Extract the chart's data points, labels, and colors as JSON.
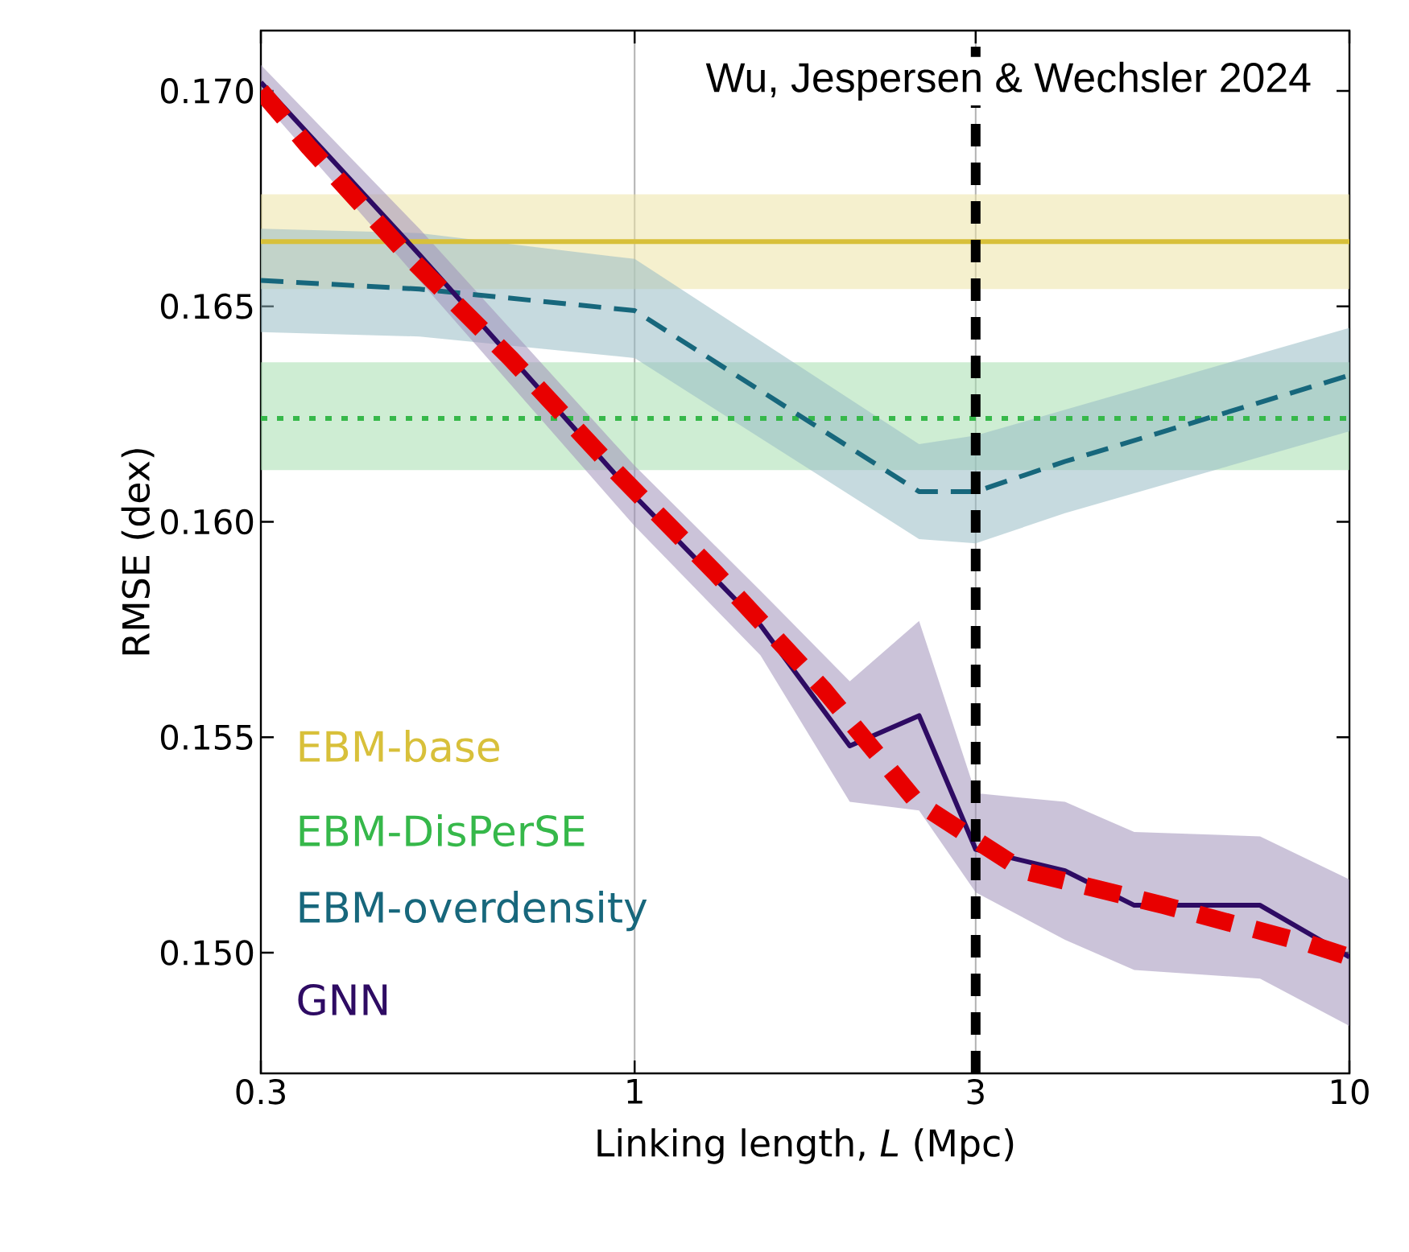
{
  "chart_data": {
    "type": "line",
    "xlabel": "Linking length, *L* (Mpc)",
    "ylabel": "RMSE (dex)",
    "annotations": [
      "Wu, Jespersen & Wechsler 2024"
    ],
    "log": "x",
    "grid": "x",
    "legend": "bottom left",
    "xlim": [
      0.3,
      10
    ],
    "ylim": [
      0.1472,
      0.1714
    ],
    "xticks": [
      {
        "value": 0.3,
        "label": "0.3"
      },
      1,
      3,
      10
    ],
    "yticks": [
      {
        "value": 0.15,
        "label": "0.150"
      },
      {
        "value": 0.155,
        "label": "0.155"
      },
      {
        "value": 0.16,
        "label": "0.160"
      },
      {
        "value": 0.165,
        "label": "0.165"
      },
      {
        "value": 0.17,
        "label": "0.170"
      }
    ],
    "series": [
      {
        "name": "EBM-base",
        "color": "#d8c03a",
        "line_style": "solid",
        "x": [
          0.3,
          10
        ],
        "values": [
          0.1665,
          0.1665
        ],
        "lower": [
          0.1654,
          0.1654
        ],
        "upper": [
          0.1676,
          0.1676
        ]
      },
      {
        "name": "EBM-DisPerSE",
        "color": "#36b84a",
        "line_style": "dotted",
        "x": [
          0.3,
          10
        ],
        "values": [
          0.1624,
          0.1624
        ],
        "lower": [
          0.1612,
          0.1612
        ],
        "upper": [
          0.1637,
          0.1637
        ]
      },
      {
        "name": "EBM-overdensity",
        "color": "#17677c",
        "line_style": "dashed",
        "x": [
          0.3,
          0.5,
          1,
          2.5,
          3,
          4,
          10
        ],
        "values": [
          0.1656,
          0.1654,
          0.1649,
          0.1607,
          0.1607,
          0.1614,
          0.1634
        ],
        "lower": [
          0.1644,
          0.1643,
          0.1638,
          0.1596,
          0.1595,
          0.1602,
          0.1621
        ],
        "upper": [
          0.1668,
          0.1667,
          0.1661,
          0.1618,
          0.162,
          0.1626,
          0.1645
        ]
      },
      {
        "name": "GNN",
        "color": "#2e0b63",
        "line_style": "solid",
        "x": [
          0.3,
          0.5,
          1,
          1.5,
          2,
          2.5,
          3,
          4,
          5,
          7.5,
          10
        ],
        "values": [
          0.1702,
          0.1662,
          0.1606,
          0.1576,
          0.1548,
          0.1555,
          0.1524,
          0.1519,
          0.1511,
          0.1511,
          0.1499
        ],
        "lower": [
          0.1698,
          0.1656,
          0.1599,
          0.1569,
          0.1535,
          0.1533,
          0.1514,
          0.1503,
          0.1496,
          0.1494,
          0.1483
        ],
        "upper": [
          0.1706,
          0.1668,
          0.1613,
          0.1584,
          0.1563,
          0.1577,
          0.1537,
          0.1535,
          0.1528,
          0.1527,
          0.1517
        ]
      },
      {
        "type": "line",
        "color": "#e80000",
        "line_style": "dashed",
        "x": [
          0.3,
          0.35,
          0.48,
          0.67,
          0.95,
          1.3,
          1.84,
          2.48,
          3.5,
          5.5,
          8.8,
          10
        ],
        "values": [
          0.17,
          0.1687,
          0.1662,
          0.1638,
          0.1611,
          0.1588,
          0.1561,
          0.1535,
          0.1519,
          0.1511,
          0.1502,
          0.1499
        ]
      }
    ],
    "ref_lines": [
      {
        "axis": "x",
        "value": 3,
        "color": "#000000",
        "line_style": "dashed"
      }
    ]
  }
}
